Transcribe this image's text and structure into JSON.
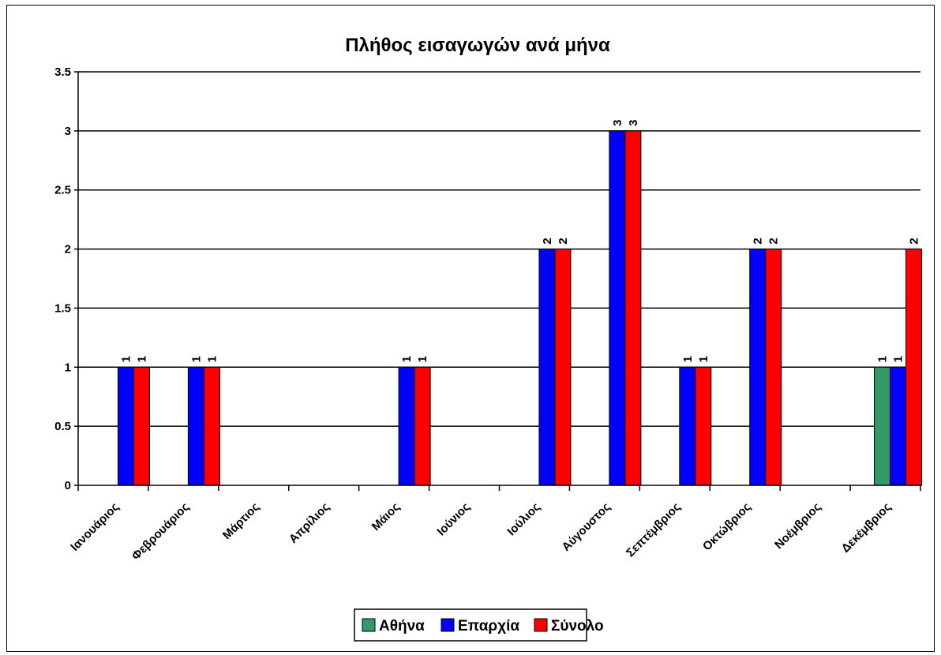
{
  "chart_data": {
    "type": "bar",
    "title": "Πλήθος εισαγωγών ανά μήνα",
    "xlabel": "",
    "ylabel": "",
    "categories": [
      "Ιανουάριος",
      "Φεβρουάριος",
      "Μάρτιος",
      "Απρίλιος",
      "Μάιος",
      "Ιούνιος",
      "Ιούλιος",
      "Αύγουστος",
      "Σεπτέμβριος",
      "Οκτώβριος",
      "Νοέμβριος",
      "Δεκέμβριος"
    ],
    "series": [
      {
        "name": "Αθήνα",
        "color": "#339966",
        "values": [
          0,
          0,
          0,
          0,
          0,
          0,
          0,
          0,
          0,
          0,
          0,
          1
        ]
      },
      {
        "name": "Επαρχία",
        "color": "#0000FF",
        "values": [
          1,
          1,
          0,
          0,
          1,
          0,
          2,
          3,
          1,
          2,
          0,
          1
        ]
      },
      {
        "name": "Σύνολο",
        "color": "#FF0000",
        "values": [
          1,
          1,
          0,
          0,
          1,
          0,
          2,
          3,
          1,
          2,
          0,
          2
        ]
      }
    ],
    "ylim": [
      0,
      3.5
    ],
    "yticks": [
      "0",
      "0.5",
      "1",
      "1.5",
      "2",
      "2.5",
      "3",
      "3.5"
    ],
    "grid": true,
    "legend_position": "bottom",
    "data_labels": "shown on non-zero bars"
  }
}
